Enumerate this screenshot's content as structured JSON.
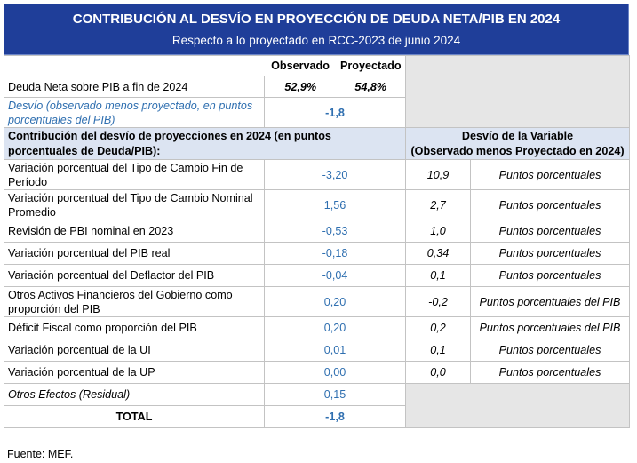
{
  "title": "CONTRIBUCIÓN AL DESVÍO EN PROYECCIÓN DE DEUDA NETA/PIB EN 2024",
  "subtitle": "Respecto a lo proyectado en RCC-2023 de junio 2024",
  "header": {
    "observado": "Observado",
    "proyectado": "Proyectado"
  },
  "deuda": {
    "label": "Deuda Neta sobre PIB a fin de 2024",
    "observado": "52,9%",
    "proyectado": "54,8%"
  },
  "desvio": {
    "label": "Desvío (observado menos proyectado, en puntos porcentuales del PIB)",
    "value": "-1,8"
  },
  "section": {
    "left": "Contribución del desvío de proyecciones en 2024 (en puntos porcentuales de Deuda/PIB):",
    "right_line1": "Desvío de la Variable",
    "right_line2": "(Observado menos Proyectado en 2024)"
  },
  "rows": [
    {
      "label": "Variación porcentual del Tipo de Cambio Fin de Período",
      "contrib": "-3,20",
      "desvio": "10,9",
      "unidad": "Puntos porcentuales"
    },
    {
      "label": "Variación porcentual del Tipo de Cambio Nominal Promedio",
      "contrib": "1,56",
      "desvio": "2,7",
      "unidad": "Puntos porcentuales"
    },
    {
      "label": "Revisión de PBI nominal en 2023",
      "contrib": "-0,53",
      "desvio": "1,0",
      "unidad": "Puntos porcentuales"
    },
    {
      "label": "Variación porcentual del PIB real",
      "contrib": "-0,18",
      "desvio": "0,34",
      "unidad": "Puntos porcentuales"
    },
    {
      "label": "Variación porcentual del Deflactor del PIB",
      "contrib": "-0,04",
      "desvio": "0,1",
      "unidad": "Puntos porcentuales"
    },
    {
      "label": "Otros Activos Financieros del Gobierno como proporción del PIB",
      "contrib": "0,20",
      "desvio": "-0,2",
      "unidad": "Puntos porcentuales del PIB"
    },
    {
      "label": "Déficit Fiscal como proporción del PIB",
      "contrib": "0,20",
      "desvio": "0,2",
      "unidad": "Puntos porcentuales del PIB"
    },
    {
      "label": "Variación porcentual de la UI",
      "contrib": "0,01",
      "desvio": "0,1",
      "unidad": "Puntos porcentuales"
    },
    {
      "label": "Variación porcentual de la UP",
      "contrib": "0,00",
      "desvio": "0,0",
      "unidad": "Puntos porcentuales"
    }
  ],
  "otros": {
    "label": "Otros Efectos (Residual)",
    "value": "0,15"
  },
  "total": {
    "label": "TOTAL",
    "value": "-1,8"
  },
  "source": "Fuente: MEF."
}
